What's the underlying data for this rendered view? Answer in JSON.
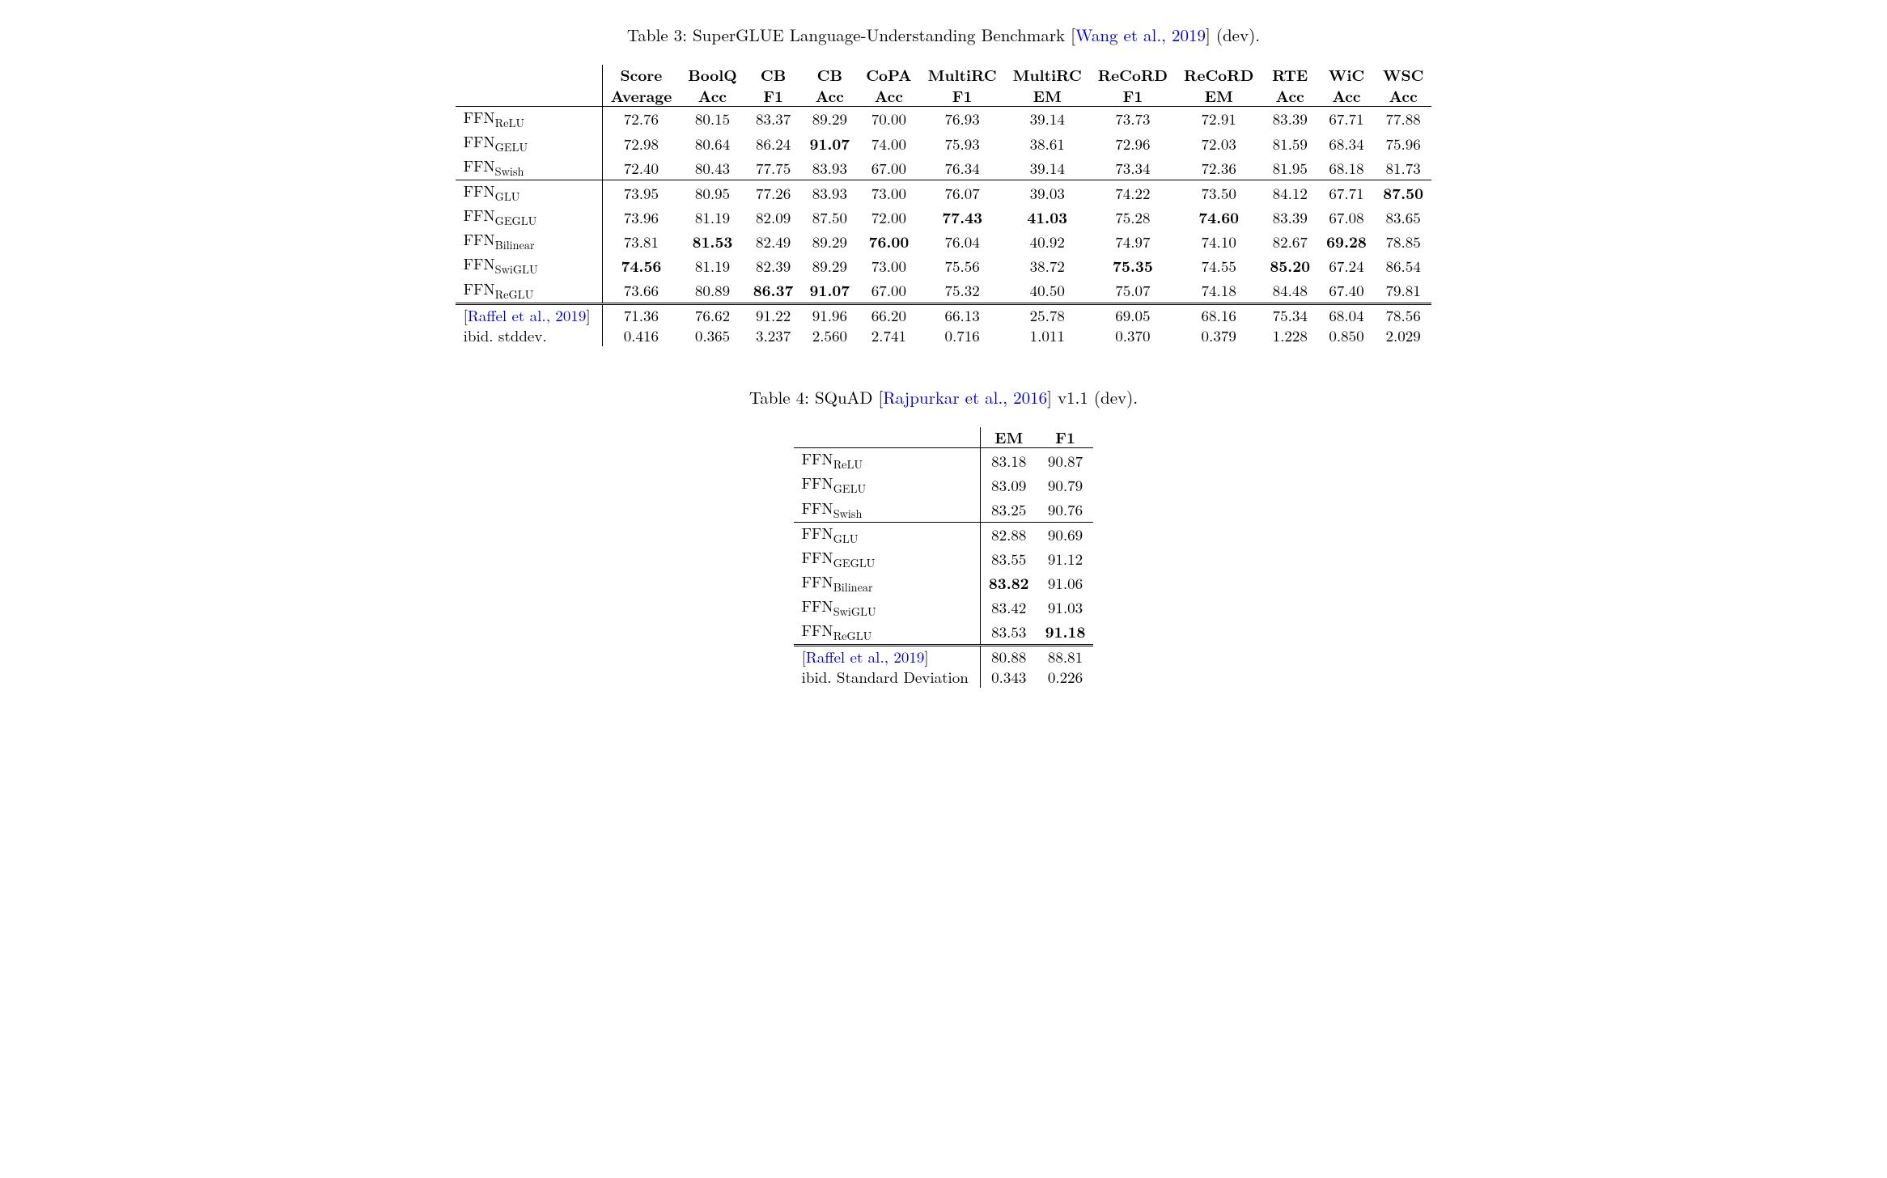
{
  "table3": {
    "caption_prefix": "Table 3: SuperGLUE Language-Understanding Benchmark [",
    "caption_cite": "Wang et al., 2019",
    "caption_suffix": "] (dev).",
    "headers_row1": [
      "Score",
      "BoolQ",
      "CB",
      "CB",
      "CoPA",
      "MultiRC",
      "MultiRC",
      "ReCoRD",
      "ReCoRD",
      "RTE",
      "WiC",
      "WSC"
    ],
    "headers_row2": [
      "Average",
      "Acc",
      "F1",
      "Acc",
      "Acc",
      "F1",
      "EM",
      "F1",
      "EM",
      "Acc",
      "Acc",
      "Acc"
    ],
    "rows": [
      {
        "label_pre": "FFN",
        "label_sub": "ReLU",
        "vals": [
          "72.76",
          "80.15",
          "83.37",
          "89.29",
          "70.00",
          "76.93",
          "39.14",
          "73.73",
          "72.91",
          "83.39",
          "67.71",
          "77.88"
        ],
        "bold": []
      },
      {
        "label_pre": "FFN",
        "label_sub": "GELU",
        "vals": [
          "72.98",
          "80.64",
          "86.24",
          "91.07",
          "74.00",
          "75.93",
          "38.61",
          "72.96",
          "72.03",
          "81.59",
          "68.34",
          "75.96"
        ],
        "bold": [
          3
        ]
      },
      {
        "label_pre": "FFN",
        "label_sub": "Swish",
        "vals": [
          "72.40",
          "80.43",
          "77.75",
          "83.93",
          "67.00",
          "76.34",
          "39.14",
          "73.34",
          "72.36",
          "81.95",
          "68.18",
          "81.73"
        ],
        "bold": []
      },
      {
        "label_pre": "FFN",
        "label_sub": "GLU",
        "vals": [
          "73.95",
          "80.95",
          "77.26",
          "83.93",
          "73.00",
          "76.07",
          "39.03",
          "74.22",
          "73.50",
          "84.12",
          "67.71",
          "87.50"
        ],
        "bold": [
          11
        ]
      },
      {
        "label_pre": "FFN",
        "label_sub": "GEGLU",
        "vals": [
          "73.96",
          "81.19",
          "82.09",
          "87.50",
          "72.00",
          "77.43",
          "41.03",
          "75.28",
          "74.60",
          "83.39",
          "67.08",
          "83.65"
        ],
        "bold": [
          5,
          6,
          8
        ]
      },
      {
        "label_pre": "FFN",
        "label_sub": "Bilinear",
        "vals": [
          "73.81",
          "81.53",
          "82.49",
          "89.29",
          "76.00",
          "76.04",
          "40.92",
          "74.97",
          "74.10",
          "82.67",
          "69.28",
          "78.85"
        ],
        "bold": [
          1,
          4,
          10
        ]
      },
      {
        "label_pre": "FFN",
        "label_sub": "SwiGLU",
        "vals": [
          "74.56",
          "81.19",
          "82.39",
          "89.29",
          "73.00",
          "75.56",
          "38.72",
          "75.35",
          "74.55",
          "85.20",
          "67.24",
          "86.54"
        ],
        "bold": [
          0,
          7,
          9
        ]
      },
      {
        "label_pre": "FFN",
        "label_sub": "ReGLU",
        "vals": [
          "73.66",
          "80.89",
          "86.37",
          "91.07",
          "67.00",
          "75.32",
          "40.50",
          "75.07",
          "74.18",
          "84.48",
          "67.40",
          "79.81"
        ],
        "bold": [
          2,
          3
        ]
      }
    ],
    "footer": [
      {
        "label": "[Raffel et al., 2019]",
        "is_cite": true,
        "vals": [
          "71.36",
          "76.62",
          "91.22",
          "91.96",
          "66.20",
          "66.13",
          "25.78",
          "69.05",
          "68.16",
          "75.34",
          "68.04",
          "78.56"
        ]
      },
      {
        "label": "ibid. stddev.",
        "is_cite": false,
        "vals": [
          "0.416",
          "0.365",
          "3.237",
          "2.560",
          "2.741",
          "0.716",
          "1.011",
          "0.370",
          "0.379",
          "1.228",
          "0.850",
          "2.029"
        ]
      }
    ],
    "group_breaks_after": [
      2
    ]
  },
  "table4": {
    "caption_prefix": "Table 4: SQuAD [",
    "caption_cite": "Rajpurkar et al., 2016",
    "caption_suffix": "] v1.1 (dev).",
    "headers": [
      "EM",
      "F1"
    ],
    "rows": [
      {
        "label_pre": "FFN",
        "label_sub": "ReLU",
        "vals": [
          "83.18",
          "90.87"
        ],
        "bold": []
      },
      {
        "label_pre": "FFN",
        "label_sub": "GELU",
        "vals": [
          "83.09",
          "90.79"
        ],
        "bold": []
      },
      {
        "label_pre": "FFN",
        "label_sub": "Swish",
        "vals": [
          "83.25",
          "90.76"
        ],
        "bold": []
      },
      {
        "label_pre": "FFN",
        "label_sub": "GLU",
        "vals": [
          "82.88",
          "90.69"
        ],
        "bold": []
      },
      {
        "label_pre": "FFN",
        "label_sub": "GEGLU",
        "vals": [
          "83.55",
          "91.12"
        ],
        "bold": []
      },
      {
        "label_pre": "FFN",
        "label_sub": "Bilinear",
        "vals": [
          "83.82",
          "91.06"
        ],
        "bold": [
          0
        ]
      },
      {
        "label_pre": "FFN",
        "label_sub": "SwiGLU",
        "vals": [
          "83.42",
          "91.03"
        ],
        "bold": []
      },
      {
        "label_pre": "FFN",
        "label_sub": "ReGLU",
        "vals": [
          "83.53",
          "91.18"
        ],
        "bold": [
          1
        ]
      }
    ],
    "footer": [
      {
        "label": "[Raffel et al., 2019]",
        "is_cite": true,
        "vals": [
          "80.88",
          "88.81"
        ]
      },
      {
        "label": "ibid. Standard Deviation",
        "is_cite": false,
        "vals": [
          "0.343",
          "0.226"
        ]
      }
    ],
    "group_breaks_after": [
      2
    ]
  }
}
